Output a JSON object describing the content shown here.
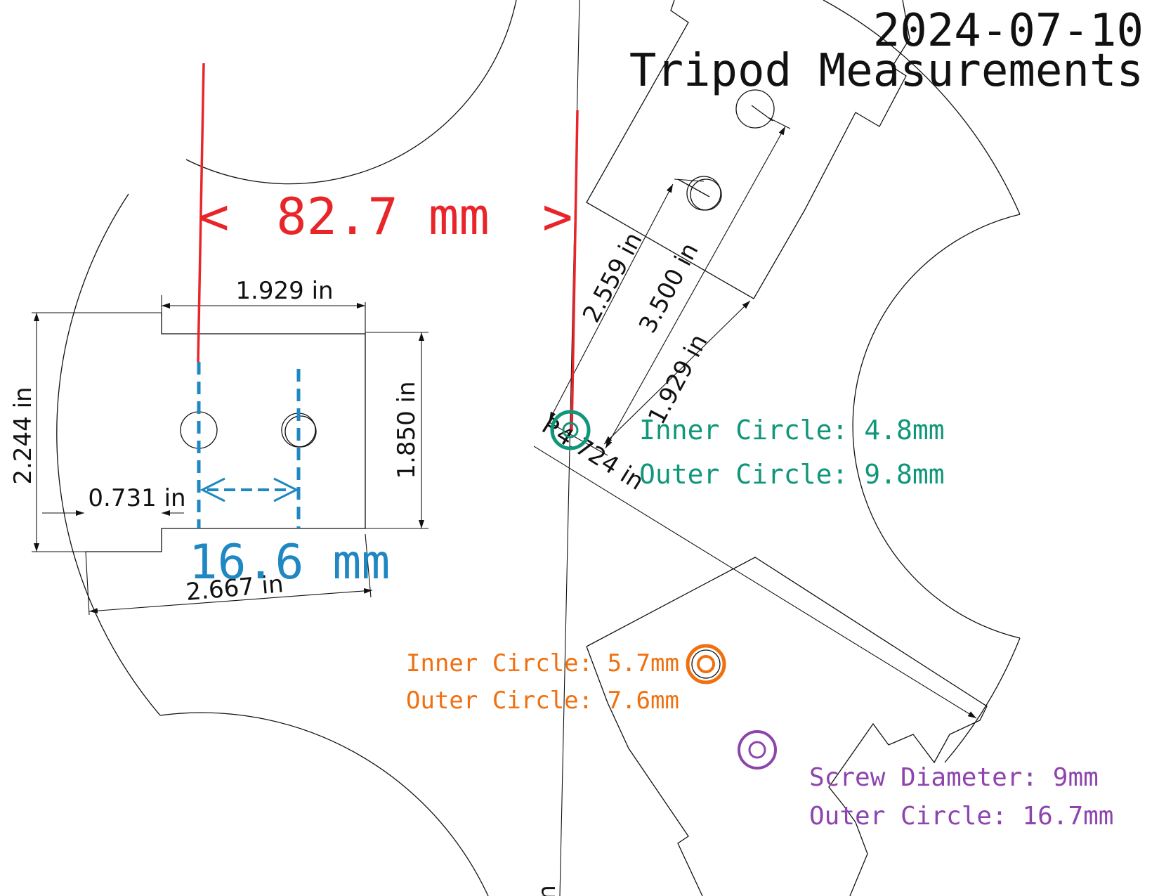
{
  "header": {
    "date": "2024-07-10",
    "title": "Tripod Measurements"
  },
  "dimensions": {
    "top_width": "1.929 in",
    "left_height": "2.244 in",
    "right_height": "1.850 in",
    "notch": "0.731 in",
    "bottom_width": "2.667 in",
    "diag_a": "2.559 in",
    "diag_b": "3.500 in",
    "diag_c": "1.929 in",
    "radius": "R4.724 in",
    "edge_fragment": "n"
  },
  "annotations": {
    "red_span": "82.7 mm",
    "red_open": "<",
    "red_close": ">",
    "blue_span": "16.6 mm",
    "green_inner": "Inner Circle: 4.8mm",
    "green_outer": "Outer Circle: 9.8mm",
    "orange_inner": "Inner Circle: 5.7mm",
    "orange_outer": "Outer Circle: 7.6mm",
    "purple_screw": "Screw Diameter: 9mm",
    "purple_outer": "Outer Circle: 16.7mm"
  },
  "colors": {
    "red": "#e8262a",
    "blue": "#1f87c2",
    "green": "#10967a",
    "orange": "#f07010",
    "purple": "#8e44ad",
    "line": "#111111"
  }
}
